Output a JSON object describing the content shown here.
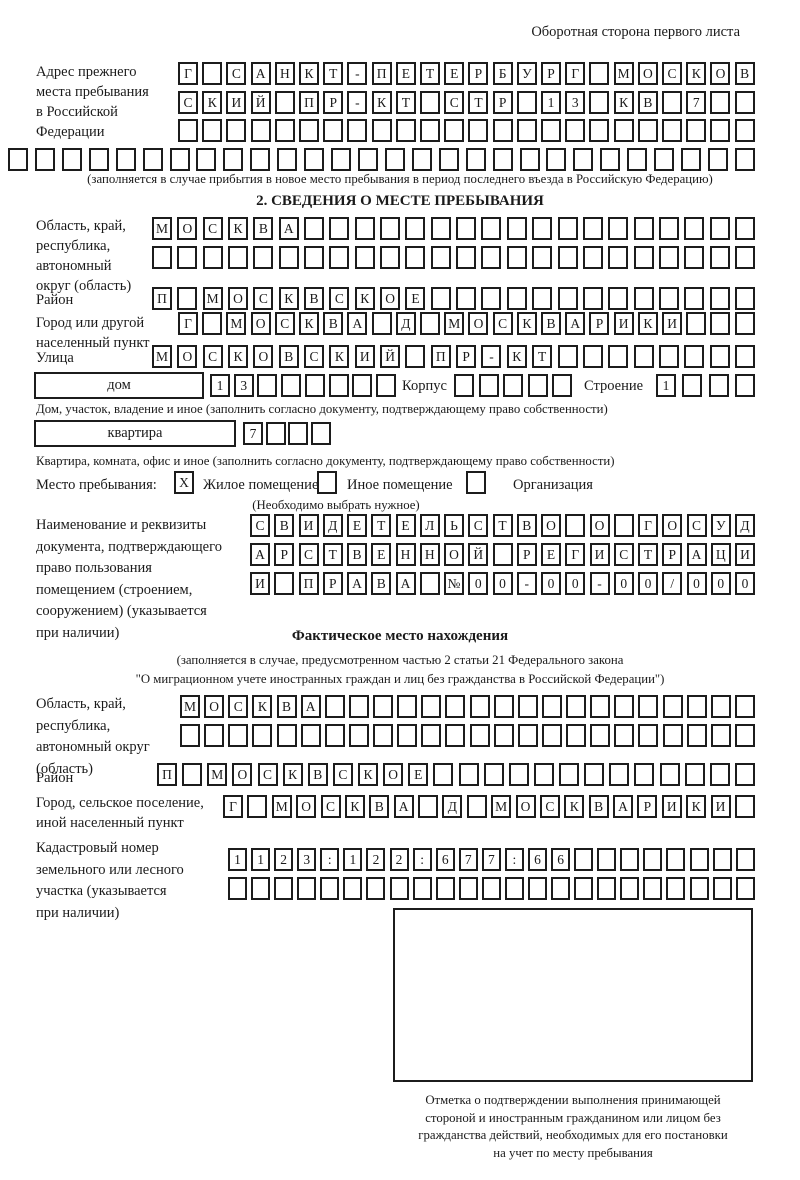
{
  "header_note": "Оборотная сторона первого листа",
  "prev_address": {
    "label": "Адрес прежнего\nместа пребывания\nв Российской\nФедерации",
    "note": "(заполняется в случае прибытия в новое место пребывания в период последнего въезда в Российскую Федерацию)",
    "row1": [
      "Г",
      "",
      "С",
      "А",
      "Н",
      "К",
      "Т",
      "-",
      "П",
      "Е",
      "Т",
      "Е",
      "Р",
      "Б",
      "У",
      "Р",
      "Г",
      "",
      "М",
      "О",
      "С",
      "К",
      "О",
      "В"
    ],
    "row2": [
      "С",
      "К",
      "И",
      "Й",
      "",
      "П",
      "Р",
      "-",
      "К",
      "Т",
      "",
      "С",
      "Т",
      "Р",
      "",
      "1",
      "3",
      "",
      "К",
      "В",
      "",
      "7",
      "",
      ""
    ],
    "row3": [
      "",
      "",
      "",
      "",
      "",
      "",
      "",
      "",
      "",
      "",
      "",
      "",
      "",
      "",
      "",
      "",
      "",
      "",
      "",
      "",
      "",
      "",
      "",
      ""
    ],
    "row4": [
      "",
      "",
      "",
      "",
      "",
      "",
      "",
      "",
      "",
      "",
      "",
      "",
      "",
      "",
      "",
      "",
      "",
      "",
      "",
      "",
      "",
      "",
      "",
      "",
      "",
      "",
      "",
      ""
    ]
  },
  "section2": {
    "title": "2. СВЕДЕНИЯ О МЕСТЕ ПРЕБЫВАНИЯ",
    "oblast_label": "Область, край,\nреспублика,\nавтономный\nокруг (область)",
    "oblast_row1": [
      "М",
      "О",
      "С",
      "К",
      "В",
      "А",
      "",
      "",
      "",
      "",
      "",
      "",
      "",
      "",
      "",
      "",
      "",
      "",
      "",
      "",
      "",
      "",
      "",
      ""
    ],
    "oblast_row2": [
      "",
      "",
      "",
      "",
      "",
      "",
      "",
      "",
      "",
      "",
      "",
      "",
      "",
      "",
      "",
      "",
      "",
      "",
      "",
      "",
      "",
      "",
      "",
      ""
    ],
    "raion_label": "Район",
    "raion_row": [
      "П",
      "",
      "М",
      "О",
      "С",
      "К",
      "В",
      "С",
      "К",
      "О",
      "Е",
      "",
      "",
      "",
      "",
      "",
      "",
      "",
      "",
      "",
      "",
      "",
      "",
      ""
    ],
    "gorod_label": "Город или другой\nнаселенный пункт",
    "gorod_row": [
      "Г",
      "",
      "М",
      "О",
      "С",
      "К",
      "В",
      "А",
      "",
      "Д",
      "",
      "М",
      "О",
      "С",
      "К",
      "В",
      "А",
      "Р",
      "И",
      "К",
      "И",
      "",
      "",
      ""
    ],
    "ulitsa_label": "Улица",
    "ulitsa_row": [
      "М",
      "О",
      "С",
      "К",
      "О",
      "В",
      "С",
      "К",
      "И",
      "Й",
      "",
      "П",
      "Р",
      "-",
      "К",
      "Т",
      "",
      "",
      "",
      "",
      "",
      "",
      "",
      ""
    ],
    "dom_label": "дом",
    "dom_cells": [
      "1",
      "3",
      "",
      "",
      "",
      "",
      "",
      ""
    ],
    "korpus_label": "Корпус",
    "korpus_cells": [
      "",
      "",
      "",
      "",
      ""
    ],
    "stroenie_label": "Строение",
    "stroenie_cells": [
      "1",
      "",
      "",
      ""
    ],
    "dom_note": "Дом, участок, владение и иное (заполнить согласно документу, подтверждающему право собственности)",
    "kvartira_label": "квартира",
    "kvartira_cells": [
      "7",
      "",
      "",
      ""
    ],
    "kvartira_note": "Квартира, комната, офис и иное (заполнить согласно документу, подтверждающему право собственности)",
    "mesto_label": "Место пребывания:",
    "mesto_cb1": "X",
    "zhiloe_label": "Жилое помещение",
    "mesto_cb2": "",
    "inoe_label": "Иное помещение",
    "mesto_cb3": "",
    "org_label": "Организация",
    "choose_note": "(Необходимо выбрать нужное)",
    "doc_label": "Наименование и реквизиты\nдокумента, подтверждающего\nправо пользования\nпомещением (строением,\nсооружением) (указывается\nпри наличии)",
    "doc_row1": [
      "С",
      "В",
      "И",
      "Д",
      "Е",
      "Т",
      "Е",
      "Л",
      "Ь",
      "С",
      "Т",
      "В",
      "О",
      "",
      "О",
      "",
      "Г",
      "О",
      "С",
      "У",
      "Д"
    ],
    "doc_row2": [
      "А",
      "Р",
      "С",
      "Т",
      "В",
      "Е",
      "Н",
      "Н",
      "О",
      "Й",
      "",
      "Р",
      "Е",
      "Г",
      "И",
      "С",
      "Т",
      "Р",
      "А",
      "Ц",
      "И"
    ],
    "doc_row3": [
      "И",
      "",
      "П",
      "Р",
      "А",
      "В",
      "А",
      "",
      "№",
      "0",
      "0",
      "-",
      "0",
      "0",
      "-",
      "0",
      "0",
      "/",
      "0",
      "0",
      "0"
    ]
  },
  "fact": {
    "title": "Фактическое место нахождения",
    "note": "(заполняется в случае, предусмотренном частью 2 статьи 21 Федерального закона\n\"О миграционном учете иностранных граждан и лиц без гражданства в Российской Федерации\")",
    "oblast_label": "Область, край,\nреспублика,\nавтономный округ\n(область)",
    "oblast_row1": [
      "М",
      "О",
      "С",
      "К",
      "В",
      "А",
      "",
      "",
      "",
      "",
      "",
      "",
      "",
      "",
      "",
      "",
      "",
      "",
      "",
      "",
      "",
      "",
      "",
      ""
    ],
    "oblast_row2": [
      "",
      "",
      "",
      "",
      "",
      "",
      "",
      "",
      "",
      "",
      "",
      "",
      "",
      "",
      "",
      "",
      "",
      "",
      "",
      "",
      "",
      "",
      "",
      ""
    ],
    "raion_label": "Район",
    "raion_row": [
      "П",
      "",
      "М",
      "О",
      "С",
      "К",
      "В",
      "С",
      "К",
      "О",
      "Е",
      "",
      "",
      "",
      "",
      "",
      "",
      "",
      "",
      "",
      "",
      "",
      "",
      ""
    ],
    "gorod_label": "Город, сельское поселение,\nиной населенный пункт",
    "gorod_row": [
      "Г",
      "",
      "М",
      "О",
      "С",
      "К",
      "В",
      "А",
      "",
      "Д",
      "",
      "М",
      "О",
      "С",
      "К",
      "В",
      "А",
      "Р",
      "И",
      "К",
      "И",
      ""
    ],
    "kadastr_label": "Кадастровый номер\nземельного или лесного\nучастка (указывается\nпри наличии)",
    "kadastr_row1": [
      "1",
      "1",
      "2",
      "3",
      ":",
      "1",
      "2",
      "2",
      ":",
      "6",
      "7",
      "7",
      ":",
      "6",
      "6",
      "",
      "",
      "",
      "",
      "",
      "",
      "",
      ""
    ],
    "kadastr_row2": [
      "",
      "",
      "",
      "",
      "",
      "",
      "",
      "",
      "",
      "",
      "",
      "",
      "",
      "",
      "",
      "",
      "",
      "",
      "",
      "",
      "",
      "",
      ""
    ],
    "stamp_note": "Отметка о подтверждении выполнения принимающей\nстороной и иностранным гражданином или лицом без\nгражданства действий, необходимых для его постановки\nна учет по месту пребывания"
  }
}
